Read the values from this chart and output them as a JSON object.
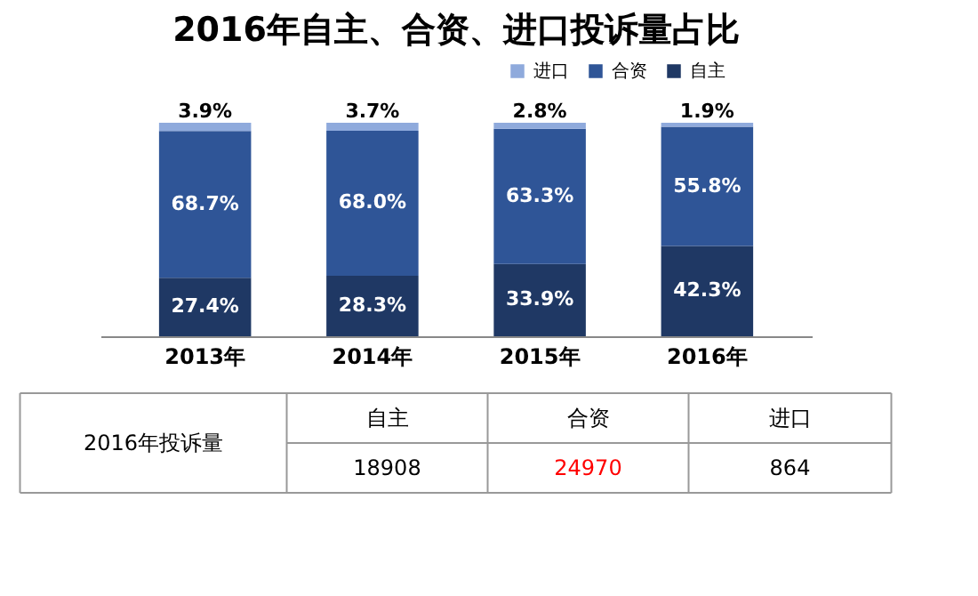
{
  "chart_data": {
    "type": "bar",
    "title": "2016年自主、合资、进口投诉量占比",
    "categories": [
      "2013年",
      "2014年",
      "2015年",
      "2016年"
    ],
    "stacked": true,
    "legend": "top right",
    "series": [
      {
        "name": "自主",
        "color": "#1f3864",
        "values": [
          27.4,
          28.3,
          33.9,
          42.3
        ],
        "value_labels": [
          "27.4%",
          "28.3%",
          "33.9%",
          "42.3%"
        ]
      },
      {
        "name": "合资",
        "color": "#2f5597",
        "values": [
          68.7,
          68.0,
          63.3,
          55.8
        ],
        "value_labels": [
          "68.7%",
          "68.0%",
          "63.3%",
          "55.8%"
        ]
      },
      {
        "name": "进口",
        "color": "#8faadc",
        "values": [
          3.9,
          3.7,
          2.8,
          1.9
        ],
        "value_labels": [
          "3.9%",
          "3.7%",
          "2.8%",
          "1.9%"
        ]
      }
    ],
    "annotations": [
      "2016年投诉量",
      "18908",
      "24970",
      "864"
    ]
  }
}
